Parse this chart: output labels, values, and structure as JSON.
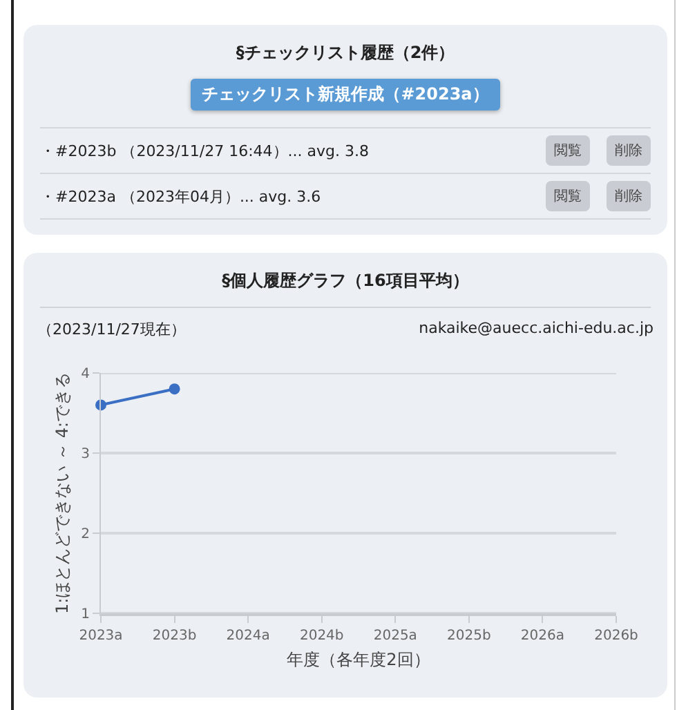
{
  "chart_data": [
    {
      "type": "other",
      "title": "§チェックリスト履歴（2件）",
      "annotations": [
        "チェックリスト新規作成（#2023a）",
        "・#2023b （2023/11/27 16:44）... avg. 3.8",
        "閲覧",
        "削除",
        "・#2023a （2023年04月）... avg. 3.6",
        "閲覧",
        "削除"
      ]
    },
    {
      "type": "line",
      "title": "§個人履歴グラフ（16項目平均）",
      "annotations": [
        "（2023/11/27現在）",
        "nakaike@auecc.aichi-edu.ac.jp"
      ],
      "categories": [
        "2023a",
        "2023b",
        "2024a",
        "2024b",
        "2025a",
        "2025b",
        "2026a",
        "2026b"
      ],
      "series": [
        {
          "color": "#3a6fc4",
          "values": [
            3.6,
            3.8,
            null,
            null,
            null,
            null,
            null,
            null
          ]
        }
      ],
      "xlabel": "年度（各年度2回）",
      "ylabel": "1:ほとんどできない ～ 4:できる",
      "ylim": [
        1,
        4
      ],
      "yticks": [
        1,
        2,
        3,
        4
      ],
      "grid": "y",
      "marker": "circle",
      "line_style": "solid"
    }
  ]
}
